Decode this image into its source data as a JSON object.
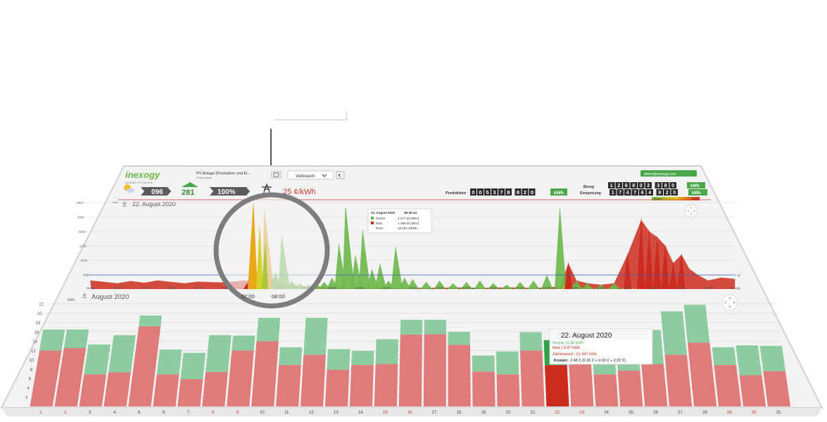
{
  "header": {
    "logo": "inexogy",
    "logo_tagline": "WOHNEN IST ENERGIE",
    "meter_select": "PV Anlage (Produktion und Ei...",
    "meter_sub": "Photovoltaik",
    "view_dropdown": "Verbrauch",
    "account_button": "demo@inexogy.com",
    "weather_value": "096",
    "house_value": "281",
    "percent_value": "100%",
    "price": "25 ¢/kWh",
    "production_label": "Produktion",
    "production_digits": "005378.820",
    "production_unit": "kWh",
    "bezug_label": "Bezug",
    "bezug_digits": "126802.380",
    "bezug_unit": "kWh",
    "einspeisung_label": "Einspeisung",
    "einspeisung_digits": "174764.920",
    "einspeisung_unit": "kWh",
    "legend_left": "Sonne",
    "legend_right": "Netz"
  },
  "day_panel": {
    "title": "22. August 2020",
    "y_unit": "Watt",
    "baseline_label": "W",
    "tooltip": {
      "title": "22. August 2020",
      "time": "08:06:44",
      "row1_label": "Sonne:",
      "row1_value": "2 177 W (65%)",
      "row2_label": "Netz:",
      "row2_value": "1 156 W (35%)",
      "row3_label": "Preis:",
      "row3_value": "16,404 ¢/kWh"
    },
    "zoom_labels": [
      "07:00",
      "08:00"
    ]
  },
  "month_panel": {
    "title": "August 2020",
    "y_unit": "kWh",
    "tooltip": {
      "title": "22. August 2020",
      "sonne": "Sonne | 5.36 kWh",
      "netz": "Netz | 8.87 kWh",
      "zaehler": "Zählerstand : 21.447 kWh",
      "kosten_label": "Kosten:",
      "kosten_value": "2.48 € (0.26 € + 0.00 € + 2.22 €)"
    }
  },
  "chart_data": [
    {
      "type": "area",
      "title": "22. August 2020",
      "ylabel": "Watt",
      "ylim": [
        0,
        3000
      ],
      "yticks": [
        500,
        1000,
        1500,
        2000,
        2500,
        3000
      ],
      "xticks": [
        "Sa 22.",
        "01:00",
        "02:00",
        "03:00",
        "04:00",
        "05:00",
        "06:00",
        "07:00",
        "08:00",
        "09:00",
        "10:00",
        "11:00",
        "12:00",
        "13:00",
        "14:00",
        "15:00",
        "16:00",
        "17:00",
        "18:00",
        "19:00",
        "20:00",
        "21:00",
        "22:00",
        "23:00",
        "23. Aug"
      ],
      "x": [
        0,
        0.5,
        1,
        1.5,
        2,
        2.5,
        3,
        3.5,
        4,
        4.5,
        5,
        5.5,
        6,
        6.3,
        6.6,
        6.9,
        7.2,
        7.5,
        7.8,
        8.1,
        8.4,
        8.7,
        9,
        9.3,
        9.6,
        9.9,
        10.2,
        10.5,
        10.8,
        11.1,
        11.4,
        11.7,
        12,
        12.5,
        13,
        13.5,
        14,
        14.5,
        15,
        15.5,
        16,
        16.5,
        17,
        17.5,
        17.8,
        18.1,
        18.5,
        19,
        19.5,
        20,
        20.5,
        20.8,
        21.1,
        21.4,
        21.7,
        22,
        22.3,
        22.6,
        23,
        23.5,
        24
      ],
      "series": [
        {
          "name": "Sonne",
          "values": [
            0,
            0,
            0,
            0,
            0,
            0,
            0,
            0,
            0,
            0,
            0,
            0,
            0,
            200,
            2800,
            600,
            1900,
            300,
            200,
            150,
            200,
            250,
            400,
            1600,
            3000,
            1200,
            2100,
            700,
            900,
            300,
            1500,
            400,
            350,
            250,
            300,
            200,
            250,
            300,
            200,
            150,
            250,
            300,
            500,
            2900,
            400,
            300,
            200,
            150,
            200,
            150,
            100,
            50,
            0,
            0,
            0,
            0,
            0,
            0,
            0,
            0,
            0
          ]
        },
        {
          "name": "Netz",
          "values": [
            300,
            250,
            200,
            280,
            220,
            300,
            250,
            200,
            260,
            240,
            230,
            280,
            300,
            350,
            400,
            300,
            200,
            150,
            100,
            80,
            60,
            80,
            50,
            60,
            40,
            50,
            60,
            40,
            50,
            40,
            60,
            50,
            40,
            50,
            40,
            60,
            50,
            40,
            50,
            60,
            50,
            40,
            60,
            80,
            900,
            300,
            200,
            150,
            200,
            1200,
            2400,
            2000,
            1800,
            1500,
            900,
            1200,
            700,
            500,
            300,
            400,
            350
          ]
        }
      ],
      "colors": {
        "sonne": "#6bb84a",
        "netz": "#cc2b1f",
        "mix": "#e8c21a"
      }
    },
    {
      "type": "bar",
      "title": "August 2020",
      "ylabel": "kWh",
      "ylim": [
        0,
        22
      ],
      "yticks": [
        2,
        4,
        6,
        8,
        10,
        12,
        14,
        16,
        18,
        20,
        22
      ],
      "categories": [
        "1.",
        "2.",
        "3.",
        "4.",
        "5.",
        "6.",
        "7.",
        "8.",
        "9.",
        "10.",
        "11.",
        "12.",
        "13.",
        "14.",
        "15.",
        "16.",
        "17.",
        "18.",
        "19.",
        "20.",
        "21.",
        "22.",
        "23.",
        "24.",
        "25.",
        "26.",
        "27.",
        "28.",
        "29.",
        "30.",
        "31."
      ],
      "weekend": [
        "1.",
        "2.",
        "8.",
        "9.",
        "15.",
        "16.",
        "22.",
        "23.",
        "29.",
        "30."
      ],
      "series": [
        {
          "name": "Netz",
          "values": [
            12.0,
            12.5,
            6.9,
            7.3,
            17.2,
            6.9,
            5.9,
            7.4,
            12.0,
            14.0,
            8.9,
            11.1,
            7.9,
            8.9,
            9.1,
            15.4,
            15.5,
            13.2,
            7.5,
            6.9,
            12.0,
            8.87,
            9.3,
            6.9,
            7.7,
            9.1,
            11.1,
            13.7,
            8.9,
            6.7,
            7.6
          ]
        },
        {
          "name": "Sonne",
          "values": [
            4.5,
            4.0,
            6.4,
            8.0,
            2.3,
            5.3,
            5.6,
            7.9,
            3.2,
            5.0,
            3.8,
            7.9,
            4.4,
            3.0,
            5.3,
            3.2,
            3.1,
            2.8,
            3.4,
            4.9,
            3.9,
            5.36,
            4.9,
            4.8,
            6.5,
            7.3,
            9.3,
            8.1,
            3.8,
            6.4,
            5.4
          ]
        }
      ],
      "colors": {
        "netz": "#e07b7b",
        "sonne": "#8ccca0",
        "highlight": "#cc2b1f"
      }
    }
  ]
}
